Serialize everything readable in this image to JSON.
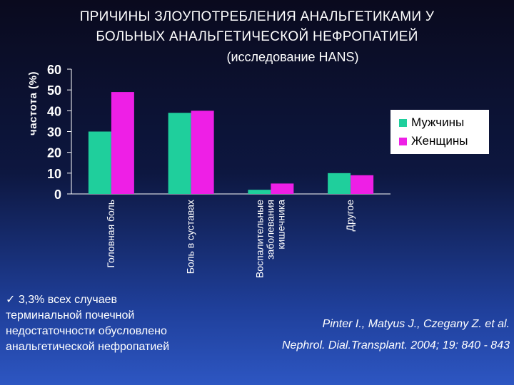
{
  "slide": {
    "title_line1": "ПРИЧИНЫ ЗЛОУПОТРЕБЛЕНИЯ АНАЛЬГЕТИКАМИ У",
    "title_line2": "БОЛЬНЫХ АНАЛЬГЕТИЧЕСКОЙ НЕФРОПАТИЕЙ",
    "subtitle": "(исследование HANS)",
    "note_lines": [
      "✓ 3,3% всех случаев",
      "терминальной почечной",
      "недостаточности обусловлено",
      "анальгетической нефропатией"
    ],
    "reference_line1": "Pinter I., Matyus J., Czegany Z. et al.",
    "reference_line2": "Nephrol. Dial.Transplant. 2004; 19: 840 - 843"
  },
  "chart_data": {
    "type": "bar",
    "title": "ПРИЧИНЫ ЗЛОУПОТРЕБЛЕНИЯ АНАЛЬГЕТИКАМИ У БОЛЬНЫХ АНАЛЬГЕТИЧЕСКОЙ НЕФРОПАТИЕЙ",
    "subtitle": "(исследование HANS)",
    "ylabel": "частота (%)",
    "xlabel": "",
    "ylim": [
      0,
      60
    ],
    "yticks": [
      0,
      10,
      20,
      30,
      40,
      50,
      60
    ],
    "categories": [
      [
        "Головная боль"
      ],
      [
        "Боль в суставах"
      ],
      [
        "Воспалительные",
        "заболевания",
        "кишечника"
      ],
      [
        "Другое"
      ]
    ],
    "series": [
      {
        "name": "Мужчины",
        "color": "#1fcf9c",
        "values": [
          30,
          39,
          2,
          10
        ]
      },
      {
        "name": "Женщины",
        "color": "#ee1fe6",
        "values": [
          49,
          40,
          5,
          9
        ]
      }
    ],
    "legend_position": "right",
    "grid": false
  }
}
